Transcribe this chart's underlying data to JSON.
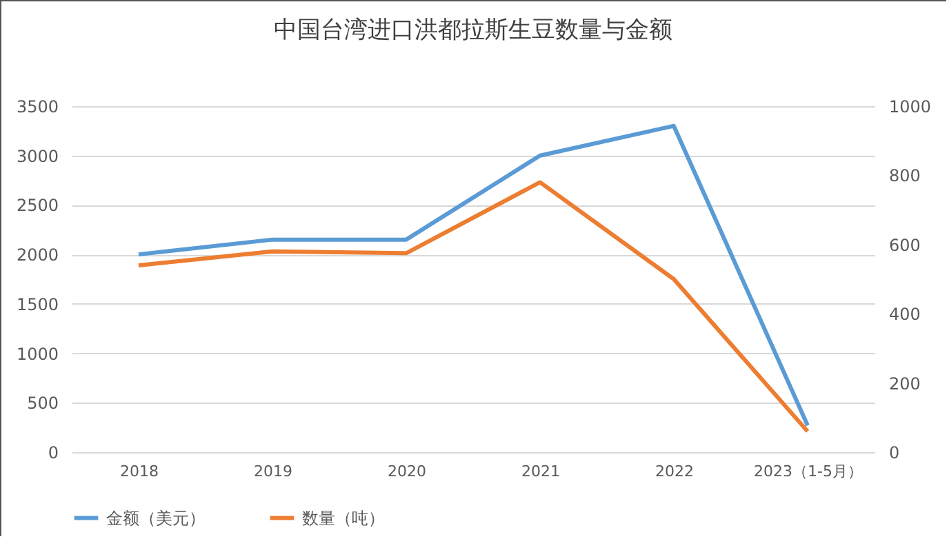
{
  "chart_data": {
    "type": "line",
    "title": "中国台湾进口洪都拉斯生豆数量与金额",
    "categories": [
      "2018",
      "2019",
      "2020",
      "2021",
      "2022",
      "2023（1-5月）"
    ],
    "series": [
      {
        "name": "金额（美元）",
        "color": "#5b9bd5",
        "values": [
          2000,
          2150,
          2150,
          3000,
          3300,
          270
        ]
      },
      {
        "name": "数量（吨）",
        "color": "#ed7d31",
        "axis": "y2",
        "values": [
          540,
          580,
          575,
          780,
          500,
          60
        ]
      }
    ],
    "ylim": [
      0,
      3500
    ],
    "yticks": [
      0,
      500,
      1000,
      1500,
      2000,
      2500,
      3000,
      3500
    ],
    "y2lim": [
      0,
      1000
    ],
    "y2ticks": [
      0,
      200,
      400,
      600,
      800,
      1000
    ],
    "grid": "y",
    "legend": "bottom",
    "marker": "none",
    "line_style": "solid"
  }
}
